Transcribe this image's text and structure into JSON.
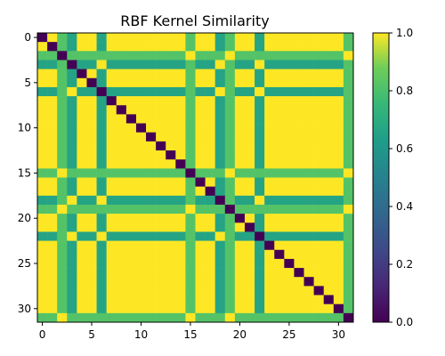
{
  "chart_data": {
    "type": "heatmap",
    "title": "RBF Kernel Similarity",
    "xlabel": "",
    "ylabel": "",
    "n": 32,
    "x_ticks": [
      0,
      5,
      10,
      15,
      20,
      25,
      30
    ],
    "y_ticks": [
      0,
      5,
      10,
      15,
      20,
      25,
      30
    ],
    "colormap": "viridis",
    "colorbar": {
      "range": [
        0.0,
        1.0
      ],
      "ticks": [
        "0.0",
        "0.2",
        "0.4",
        "0.6",
        "0.8",
        "1.0"
      ]
    },
    "feature_vectors": [
      [
        0,
        0
      ],
      [
        0,
        0
      ],
      [
        1,
        0
      ],
      [
        1,
        1
      ],
      [
        0,
        0
      ],
      [
        0,
        0
      ],
      [
        1,
        1
      ],
      [
        0,
        0
      ],
      [
        0,
        0
      ],
      [
        0,
        0
      ],
      [
        0,
        0
      ],
      [
        0,
        0
      ],
      [
        0,
        0
      ],
      [
        0,
        0
      ],
      [
        0,
        0
      ],
      [
        1,
        0
      ],
      [
        0,
        0
      ],
      [
        0,
        0
      ],
      [
        1,
        1
      ],
      [
        1,
        0
      ],
      [
        0,
        0
      ],
      [
        0,
        0
      ],
      [
        1,
        1
      ],
      [
        0,
        0
      ],
      [
        0,
        0
      ],
      [
        0,
        0
      ],
      [
        0,
        0
      ],
      [
        0,
        0
      ],
      [
        0,
        0
      ],
      [
        0,
        0
      ],
      [
        0,
        0
      ],
      [
        1,
        0
      ]
    ],
    "value_rules": {
      "diagonal": 0.0,
      "same_vector": 1.0,
      "one_coordinate_diff": 0.82,
      "two_coordinate_diff": 0.66
    }
  }
}
